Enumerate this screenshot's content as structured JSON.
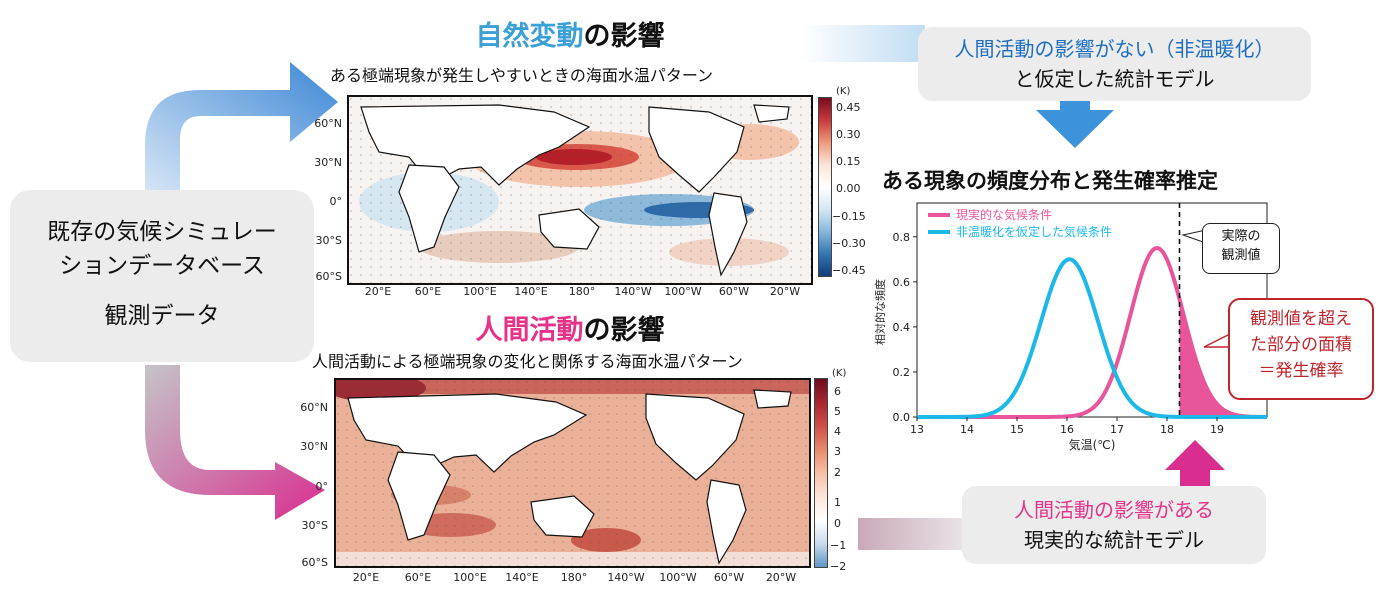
{
  "left_box": {
    "line1": "既存の気候シミュレー",
    "line2": "ションデータベース",
    "line3": "観測データ"
  },
  "top_section": {
    "title_highlight": "自然変動",
    "title_rest": "の影響",
    "subtitle": "ある極端現象が発生しやすいときの海面水温パターン",
    "highlight_color": "#3ba0d6",
    "lat_labels": [
      "60°N",
      "30°N",
      "0°",
      "30°S",
      "60°S"
    ],
    "lon_labels": [
      "20°E",
      "60°E",
      "100°E",
      "140°E",
      "180°",
      "140°W",
      "100°W",
      "60°W",
      "20°W"
    ],
    "colorbar_unit": "(K)",
    "colorbar_ticks": [
      "0.45",
      "0.30",
      "0.15",
      "0.00",
      "−0.15",
      "−0.30",
      "−0.45"
    ]
  },
  "bottom_section": {
    "title_highlight": "人間活動",
    "title_rest": "の影響",
    "subtitle": "人間活動による極端現象の変化と関係する海面水温パターン",
    "highlight_color": "#e6338a",
    "lat_labels": [
      "60°N",
      "30°N",
      "0°",
      "30°S",
      "60°S"
    ],
    "lon_labels": [
      "20°E",
      "60°E",
      "100°E",
      "140°E",
      "180°",
      "140°W",
      "100°W",
      "60°W",
      "20°W"
    ],
    "colorbar_unit": "(K)",
    "colorbar_ticks": [
      "6",
      "5",
      "4",
      "3",
      "2",
      "1",
      "0",
      "−1",
      "−2"
    ]
  },
  "top_right_box": {
    "line1": "人間活動の影響がない（非温暖化）",
    "line2": "と仮定した統計モデル",
    "line1_color": "#1f6fc1"
  },
  "bottom_right_box": {
    "line1": "人間活動の影響がある",
    "line2": "現実的な統計モデル",
    "line1_color": "#e6338a"
  },
  "chart_title": "ある現象の頻度分布と発生確率推定",
  "callout_observed": {
    "line1": "実際の",
    "line2": "観測値"
  },
  "callout_area": {
    "line1": "観測値を超え",
    "line2": "た部分の面積",
    "line3": "＝発生確率",
    "color": "#c0242b"
  },
  "chart_data": {
    "type": "line",
    "xlabel": "気温(℃)",
    "ylabel": "相対的な頻度",
    "xlim": [
      13,
      20
    ],
    "ylim": [
      0,
      0.95
    ],
    "xticks": [
      "13",
      "14",
      "15",
      "16",
      "17",
      "18",
      "19"
    ],
    "yticks": [
      "0.0",
      "0.2",
      "0.4",
      "0.6",
      "0.8"
    ],
    "observed_value": 18.25,
    "series": [
      {
        "name": "現実的な気候条件",
        "color": "#e8559a",
        "mean": 17.8,
        "sd": 0.53,
        "peak": 0.75
      },
      {
        "name": "非温暖化を仮定した気候条件",
        "color": "#1cb8e8",
        "mean": 16.05,
        "sd": 0.57,
        "peak": 0.7
      }
    ],
    "legend_position": "top-left"
  }
}
